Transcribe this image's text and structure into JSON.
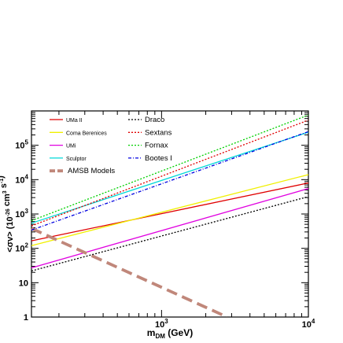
{
  "chart_data": {
    "type": "line",
    "xlabel": "m_DM (GeV)",
    "ylabel": "<σv> (10^-26 cm^3 s^-1)",
    "xscale": "log",
    "yscale": "log",
    "xlim": [
      130,
      10000
    ],
    "ylim": [
      1,
      1000000
    ],
    "legend_position": "top-left",
    "x_tick_labels": [
      {
        "value": 1000,
        "base": "10",
        "exp": "3"
      },
      {
        "value": 10000,
        "base": "10",
        "exp": "4"
      }
    ],
    "y_tick_labels": [
      {
        "value": 1,
        "base": "1",
        "exp": ""
      },
      {
        "value": 10,
        "base": "10",
        "exp": ""
      },
      {
        "value": 100,
        "base": "10",
        "exp": "2"
      },
      {
        "value": 1000,
        "base": "10",
        "exp": "3"
      },
      {
        "value": 10000,
        "base": "10",
        "exp": "4"
      },
      {
        "value": 100000,
        "base": "10",
        "exp": "5"
      }
    ],
    "series": [
      {
        "name": "UMa II",
        "color": "#e00000",
        "style": "solid",
        "x": [
          130,
          10000
        ],
        "y": [
          165,
          8000
        ]
      },
      {
        "name": "Coma Berenices",
        "color": "#f0f000",
        "style": "solid",
        "x": [
          130,
          10000
        ],
        "y": [
          120,
          14000
        ]
      },
      {
        "name": "UMi",
        "color": "#e000e0",
        "style": "solid",
        "x": [
          130,
          10000
        ],
        "y": [
          27,
          5500
        ]
      },
      {
        "name": "Sculptor",
        "color": "#00d8d8",
        "style": "solid",
        "x": [
          130,
          10000
        ],
        "y": [
          540,
          240000
        ]
      },
      {
        "name": "AMSB Models",
        "color": "#c0877a",
        "style": "thick-dashed",
        "x": [
          130,
          2800
        ],
        "y": [
          380,
          1
        ]
      },
      {
        "name": "Draco",
        "color": "#000000",
        "style": "dotted",
        "x": [
          130,
          10000
        ],
        "y": [
          22,
          3200
        ]
      },
      {
        "name": "Sextans",
        "color": "#e00000",
        "style": "dotted",
        "x": [
          130,
          10000
        ],
        "y": [
          450,
          540000
        ]
      },
      {
        "name": "Fornax",
        "color": "#00d000",
        "style": "dotted",
        "x": [
          130,
          10000
        ],
        "y": [
          640,
          760000
        ]
      },
      {
        "name": "Bootes I",
        "color": "#0000e0",
        "style": "dashdot",
        "x": [
          130,
          10000
        ],
        "y": [
          340,
          250000
        ]
      }
    ]
  }
}
